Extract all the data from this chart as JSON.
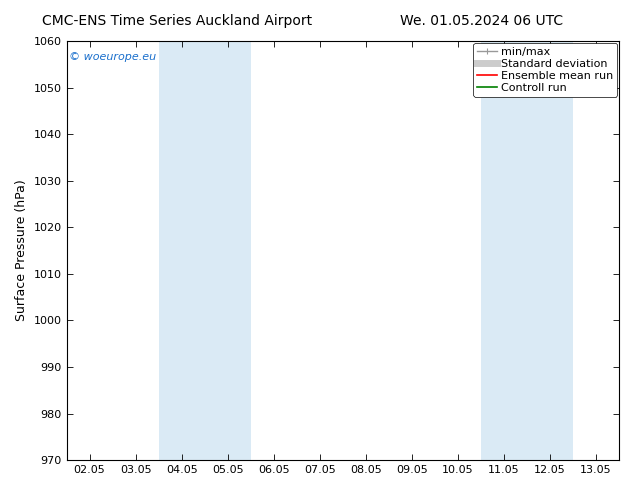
{
  "title_left": "CMC-ENS Time Series Auckland Airport",
  "title_right": "We. 01.05.2024 06 UTC",
  "ylabel": "Surface Pressure (hPa)",
  "ylim": [
    970,
    1060
  ],
  "yticks": [
    970,
    980,
    990,
    1000,
    1010,
    1020,
    1030,
    1040,
    1050,
    1060
  ],
  "xtick_labels": [
    "02.05",
    "03.05",
    "04.05",
    "05.05",
    "06.05",
    "07.05",
    "08.05",
    "09.05",
    "10.05",
    "11.05",
    "12.05",
    "13.05"
  ],
  "shaded_bands": [
    {
      "xstart": 2,
      "xend": 4,
      "color": "#daeaf5"
    },
    {
      "xstart": 9,
      "xend": 11,
      "color": "#daeaf5"
    }
  ],
  "watermark": "© woeurope.eu",
  "watermark_color": "#1a6fcc",
  "legend_entries": [
    {
      "label": "min/max",
      "color": "#999999",
      "lw": 1.0,
      "linestyle": "-"
    },
    {
      "label": "Standard deviation",
      "color": "#cccccc",
      "lw": 5,
      "linestyle": "-"
    },
    {
      "label": "Ensemble mean run",
      "color": "#ff0000",
      "lw": 1.2,
      "linestyle": "-"
    },
    {
      "label": "Controll run",
      "color": "#008000",
      "lw": 1.2,
      "linestyle": "-"
    }
  ],
  "background_color": "#ffffff",
  "plot_bg_color": "#ffffff",
  "grid_color": "#cccccc",
  "title_fontsize": 10,
  "ylabel_fontsize": 9,
  "tick_fontsize": 8,
  "legend_fontsize": 8
}
